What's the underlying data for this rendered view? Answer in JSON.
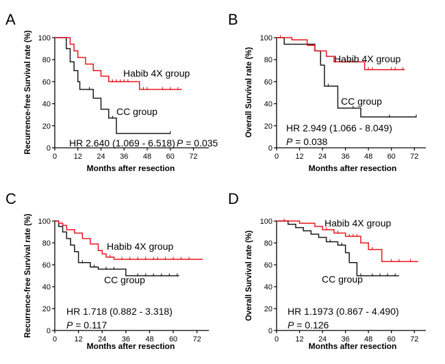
{
  "chart_data": [
    {
      "type": "line",
      "panel": "A",
      "xlabel": "Months after resection",
      "ylabel": "Recurrence-free Survival rate (%)",
      "xlim": [
        0,
        80
      ],
      "ylim": [
        0,
        100
      ],
      "xticks": [
        "0",
        "12",
        "24",
        "36",
        "48",
        "60",
        "72"
      ],
      "yticks": [
        "0",
        "20",
        "40",
        "60",
        "80",
        "100"
      ],
      "stat_hr": "HR 2.640 (1.069 - 6.518)",
      "stat_p_label": "P",
      "stat_p_value": "= 0.035",
      "series": [
        {
          "name": "Habib 4X group",
          "color": "#e8151b",
          "steps": [
            [
              0,
              100
            ],
            [
              8,
              94
            ],
            [
              10,
              88
            ],
            [
              12,
              82
            ],
            [
              16,
              76
            ],
            [
              20,
              70
            ],
            [
              24,
              65
            ],
            [
              28,
              60
            ],
            [
              44,
              53
            ],
            [
              66,
              53
            ]
          ],
          "censors": [
            [
              30,
              60
            ],
            [
              32,
              60
            ],
            [
              34,
              60
            ],
            [
              36,
              60
            ],
            [
              38,
              60
            ],
            [
              46,
              53
            ],
            [
              48,
              53
            ],
            [
              56,
              53
            ],
            [
              60,
              53
            ],
            [
              64,
              53
            ]
          ]
        },
        {
          "name": "CC group",
          "color": "#1a1a1a",
          "steps": [
            [
              0,
              100
            ],
            [
              6,
              90
            ],
            [
              8,
              78
            ],
            [
              10,
              70
            ],
            [
              12,
              60
            ],
            [
              13,
              53
            ],
            [
              18,
              53
            ],
            [
              20,
              45
            ],
            [
              24,
              35
            ],
            [
              28,
              27
            ],
            [
              32,
              13
            ],
            [
              60,
              13
            ]
          ],
          "censors": [
            [
              18,
              53
            ],
            [
              30,
              27
            ],
            [
              60,
              13
            ]
          ]
        }
      ]
    },
    {
      "type": "line",
      "panel": "B",
      "xlabel": "Months after resection",
      "ylabel": "Overall Survival rate (%)",
      "xlim": [
        0,
        78
      ],
      "ylim": [
        0,
        100
      ],
      "xticks": [
        "0",
        "12",
        "24",
        "36",
        "48",
        "60",
        "72"
      ],
      "yticks": [
        "0",
        "20",
        "40",
        "60",
        "80",
        "100"
      ],
      "stat_hr": "HR 2.949 (1.066 - 8.049)",
      "stat_p_label": "P",
      "stat_p_value": "= 0.038",
      "series": [
        {
          "name": "Habib 4X group",
          "color": "#e8151b",
          "steps": [
            [
              0,
              100
            ],
            [
              8,
              98
            ],
            [
              16,
              93
            ],
            [
              20,
              88
            ],
            [
              26,
              83
            ],
            [
              30,
              78
            ],
            [
              46,
              71
            ],
            [
              67,
              71
            ]
          ],
          "censors": [
            [
              2,
              100
            ],
            [
              34,
              78
            ],
            [
              36,
              78
            ],
            [
              38,
              78
            ],
            [
              40,
              78
            ],
            [
              48,
              71
            ],
            [
              50,
              71
            ],
            [
              60,
              71
            ],
            [
              62,
              71
            ],
            [
              66,
              71
            ]
          ]
        },
        {
          "name": "CC group",
          "color": "#1a1a1a",
          "steps": [
            [
              0,
              100
            ],
            [
              4,
              94
            ],
            [
              20,
              88
            ],
            [
              23,
              75
            ],
            [
              25,
              56
            ],
            [
              32,
              36
            ],
            [
              44,
              28
            ],
            [
              73,
              28
            ]
          ],
          "censors": [
            [
              27,
              56
            ],
            [
              40,
              36
            ],
            [
              59,
              28
            ],
            [
              73,
              28
            ]
          ]
        }
      ]
    },
    {
      "type": "line",
      "panel": "C",
      "xlabel": "Months after resection",
      "ylabel": "Recurrence-free Survival rate (%)",
      "xlim": [
        0,
        78
      ],
      "ylim": [
        0,
        100
      ],
      "xticks": [
        "0",
        "12",
        "24",
        "36",
        "48",
        "60",
        "72"
      ],
      "yticks": [
        "0",
        "20",
        "40",
        "60",
        "80",
        "100"
      ],
      "stat_hr": "HR 1.718 (0.882 - 3.318)",
      "stat_p_label": "P",
      "stat_p_value": "= 0.117",
      "series": [
        {
          "name": "Habib 4X group",
          "color": "#e8151b",
          "steps": [
            [
              0,
              100
            ],
            [
              2,
              98
            ],
            [
              4,
              96
            ],
            [
              6,
              92
            ],
            [
              10,
              89
            ],
            [
              14,
              84
            ],
            [
              18,
              79
            ],
            [
              22,
              73
            ],
            [
              24,
              70
            ],
            [
              26,
              67
            ],
            [
              30,
              65
            ],
            [
              75,
              65
            ]
          ],
          "censors": [
            [
              28,
              67
            ],
            [
              34,
              65
            ],
            [
              38,
              65
            ],
            [
              42,
              65
            ],
            [
              46,
              65
            ],
            [
              50,
              65
            ],
            [
              52,
              65
            ],
            [
              56,
              65
            ],
            [
              60,
              65
            ],
            [
              64,
              65
            ],
            [
              68,
              65
            ]
          ]
        },
        {
          "name": "CC group",
          "color": "#1a1a1a",
          "steps": [
            [
              0,
              100
            ],
            [
              2,
              95
            ],
            [
              4,
              90
            ],
            [
              6,
              84
            ],
            [
              8,
              78
            ],
            [
              10,
              72
            ],
            [
              12,
              62
            ],
            [
              18,
              58
            ],
            [
              22,
              56
            ],
            [
              36,
              50
            ],
            [
              63,
              50
            ]
          ],
          "censors": [
            [
              14,
              62
            ],
            [
              20,
              58
            ],
            [
              26,
              56
            ],
            [
              30,
              56
            ],
            [
              42,
              50
            ],
            [
              46,
              50
            ],
            [
              50,
              50
            ],
            [
              54,
              50
            ],
            [
              58,
              50
            ],
            [
              62,
              50
            ]
          ]
        }
      ]
    },
    {
      "type": "line",
      "panel": "D",
      "xlabel": "Months after resection",
      "ylabel": "Overall Survival rate (%)",
      "xlim": [
        0,
        78
      ],
      "ylim": [
        0,
        100
      ],
      "xticks": [
        "0",
        "12",
        "24",
        "36",
        "48",
        "60",
        "72"
      ],
      "yticks": [
        "0",
        "20",
        "40",
        "60",
        "80",
        "100"
      ],
      "stat_hr": "HR 1.1973 (0.867 - 4.490)",
      "stat_p_label": "P",
      "stat_p_value": "= 0.126",
      "series": [
        {
          "name": "Habib 4X group",
          "color": "#e8151b",
          "steps": [
            [
              0,
              100
            ],
            [
              12,
              98
            ],
            [
              20,
              95
            ],
            [
              24,
              92
            ],
            [
              30,
              89
            ],
            [
              36,
              86
            ],
            [
              44,
              80
            ],
            [
              48,
              74
            ],
            [
              55,
              63
            ],
            [
              74,
              63
            ]
          ],
          "censors": [
            [
              4,
              100
            ],
            [
              26,
              92
            ],
            [
              32,
              89
            ],
            [
              38,
              86
            ],
            [
              40,
              86
            ],
            [
              42,
              86
            ],
            [
              50,
              74
            ],
            [
              60,
              63
            ],
            [
              64,
              63
            ],
            [
              70,
              63
            ]
          ]
        },
        {
          "name": "CC group",
          "color": "#1a1a1a",
          "steps": [
            [
              0,
              100
            ],
            [
              6,
              97
            ],
            [
              10,
              94
            ],
            [
              14,
              91
            ],
            [
              18,
              88
            ],
            [
              22,
              85
            ],
            [
              26,
              81
            ],
            [
              32,
              78
            ],
            [
              36,
              71
            ],
            [
              38,
              62
            ],
            [
              42,
              50
            ],
            [
              64,
              50
            ]
          ],
          "censors": [
            [
              28,
              81
            ],
            [
              34,
              78
            ],
            [
              44,
              50
            ],
            [
              50,
              50
            ],
            [
              54,
              50
            ],
            [
              58,
              50
            ],
            [
              62,
              50
            ]
          ]
        }
      ]
    }
  ]
}
